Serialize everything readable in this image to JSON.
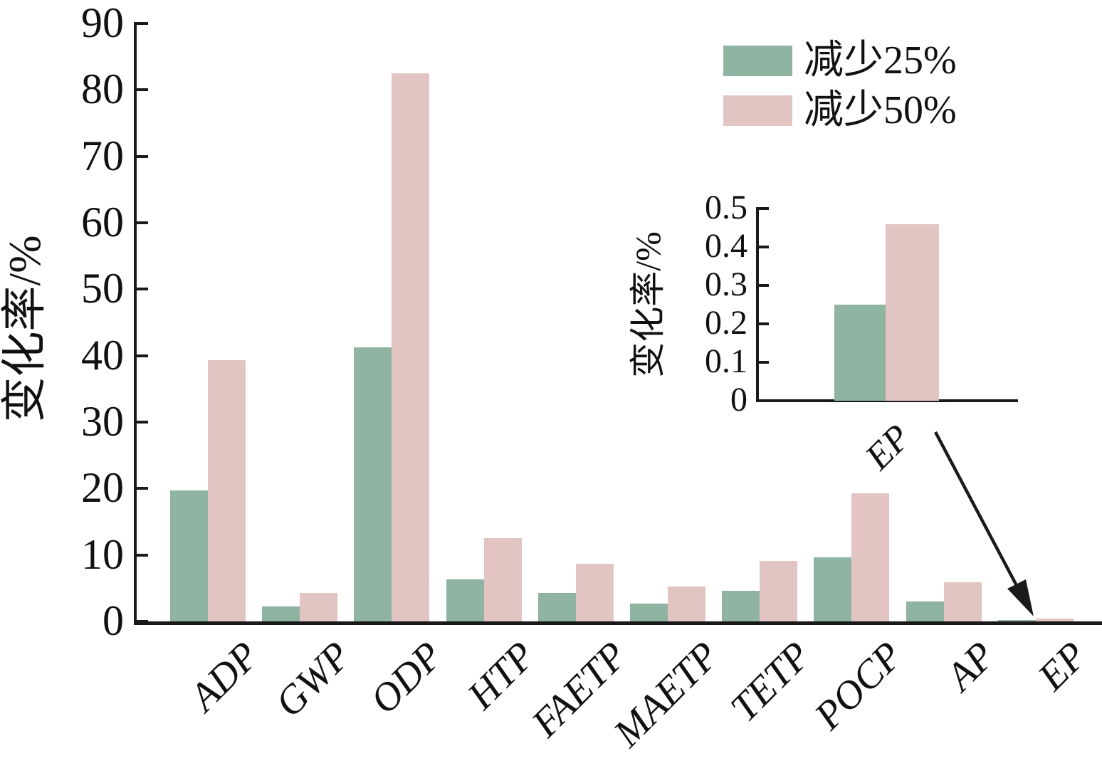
{
  "legend": {
    "items": [
      {
        "label": "减少25%",
        "color": "#8fb5a2"
      },
      {
        "label": "减少50%",
        "color": "#e2c5c3"
      }
    ]
  },
  "chart_data": {
    "type": "bar",
    "title": "",
    "xlabel": "",
    "ylabel": "变化率/%",
    "ylim": [
      0,
      90
    ],
    "ytick_labels": [
      "0",
      "10",
      "20",
      "30",
      "40",
      "50",
      "60",
      "70",
      "80",
      "90"
    ],
    "grid": false,
    "legend_position": "upper right",
    "categories": [
      "ADP",
      "GWP",
      "ODP",
      "HTP",
      "FAETP",
      "MAETP",
      "TETP",
      "POCP",
      "AP",
      "EP"
    ],
    "series": [
      {
        "name": "减少25%",
        "color": "#8fb5a2",
        "values": [
          19.7,
          2.2,
          41.2,
          6.3,
          4.3,
          2.7,
          4.6,
          9.6,
          3.0,
          0.25
        ]
      },
      {
        "name": "减少50%",
        "color": "#e2c5c3",
        "values": [
          39.3,
          4.3,
          82.5,
          12.5,
          8.7,
          5.3,
          9.1,
          19.3,
          5.9,
          0.46
        ]
      }
    ],
    "inset": {
      "type": "bar",
      "ylabel": "变化率/%",
      "xlabel": "EP",
      "ylim": [
        0,
        0.5
      ],
      "ytick_labels": [
        "0",
        "0.1",
        "0.2",
        "0.3",
        "0.4",
        "0.5"
      ],
      "categories": [
        "EP"
      ],
      "series": [
        {
          "name": "减少25%",
          "color": "#8fb5a2",
          "values": [
            0.25
          ]
        },
        {
          "name": "减少50%",
          "color": "#e2c5c3",
          "values": [
            0.46
          ]
        }
      ]
    }
  }
}
